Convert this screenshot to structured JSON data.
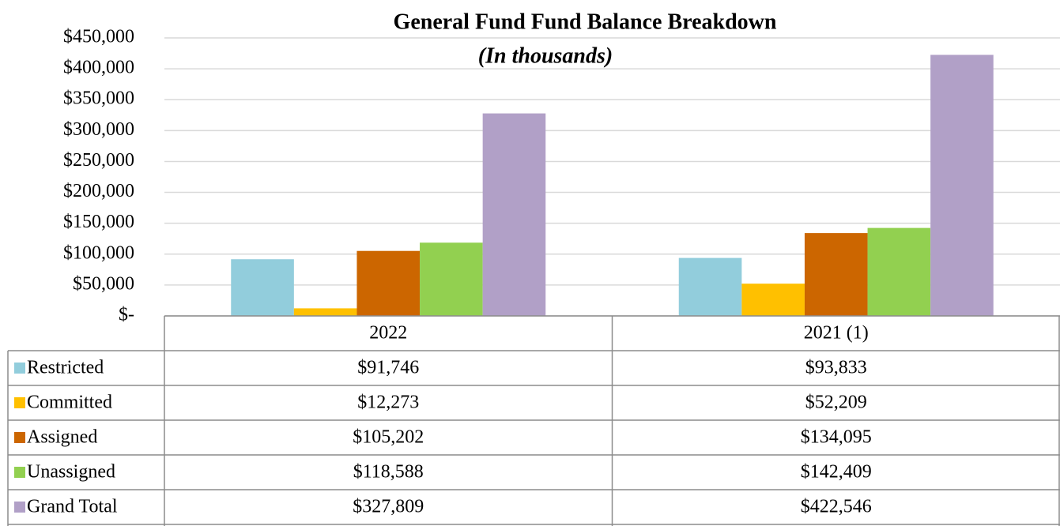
{
  "chart_data": {
    "type": "bar",
    "title": "General Fund Fund Balance Breakdown",
    "subtitle": "(In thousands)",
    "categories": [
      "2022",
      "2021 (1)"
    ],
    "series": [
      {
        "name": "Restricted",
        "color": "#92cddc",
        "values": [
          91746,
          93833
        ],
        "value_labels": [
          "$91,746",
          "$93,833"
        ]
      },
      {
        "name": "Committed",
        "color": "#ffc000",
        "values": [
          12273,
          52209
        ],
        "value_labels": [
          "$12,273",
          "$52,209"
        ]
      },
      {
        "name": "Assigned",
        "color": "#cc6600",
        "values": [
          105202,
          134095
        ],
        "value_labels": [
          "$105,202",
          "$134,095"
        ]
      },
      {
        "name": "Unassigned",
        "color": "#92d050",
        "values": [
          118588,
          142409
        ],
        "value_labels": [
          "$118,588",
          "$142,409"
        ]
      },
      {
        "name": "Grand Total",
        "color": "#b1a0c7",
        "values": [
          327809,
          422546
        ],
        "value_labels": [
          "$327,809",
          "$422,546"
        ]
      }
    ],
    "ylim": [
      0,
      450000
    ],
    "yticks": [
      {
        "value": 0,
        "label": "$-"
      },
      {
        "value": 50000,
        "label": "$50,000"
      },
      {
        "value": 100000,
        "label": "$100,000"
      },
      {
        "value": 150000,
        "label": "$150,000"
      },
      {
        "value": 200000,
        "label": "$200,000"
      },
      {
        "value": 250000,
        "label": "$250,000"
      },
      {
        "value": 300000,
        "label": "$300,000"
      },
      {
        "value": 350000,
        "label": "$350,000"
      },
      {
        "value": 400000,
        "label": "$400,000"
      },
      {
        "value": 450000,
        "label": "$450,000"
      }
    ],
    "grid": true
  }
}
